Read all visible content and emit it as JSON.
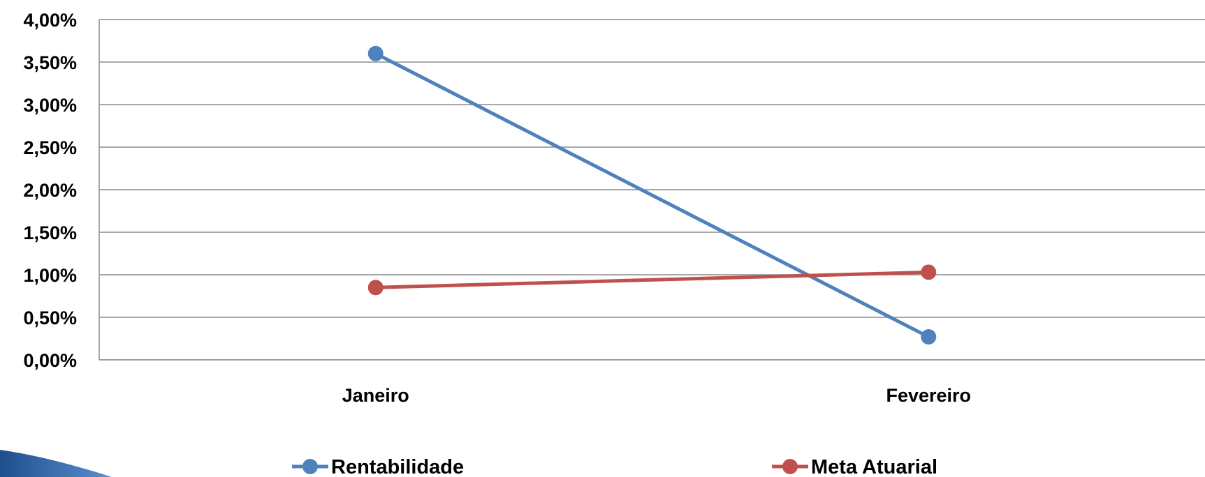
{
  "chart_data": {
    "type": "line",
    "categories": [
      "Janeiro",
      "Fevereiro"
    ],
    "series": [
      {
        "name": "Rentabilidade",
        "values": [
          3.6,
          0.27
        ],
        "color": "#4F81BD"
      },
      {
        "name": "Meta Atuarial",
        "values": [
          0.85,
          1.03
        ],
        "color": "#C0504D"
      }
    ],
    "yticks": [
      "0,00%",
      "0,50%",
      "1,00%",
      "1,50%",
      "2,00%",
      "2,50%",
      "3,00%",
      "3,50%",
      "4,00%"
    ],
    "ylim": [
      0,
      4
    ],
    "grid": true,
    "legend": "bottom",
    "title": "",
    "xlabel": "",
    "ylabel": ""
  }
}
